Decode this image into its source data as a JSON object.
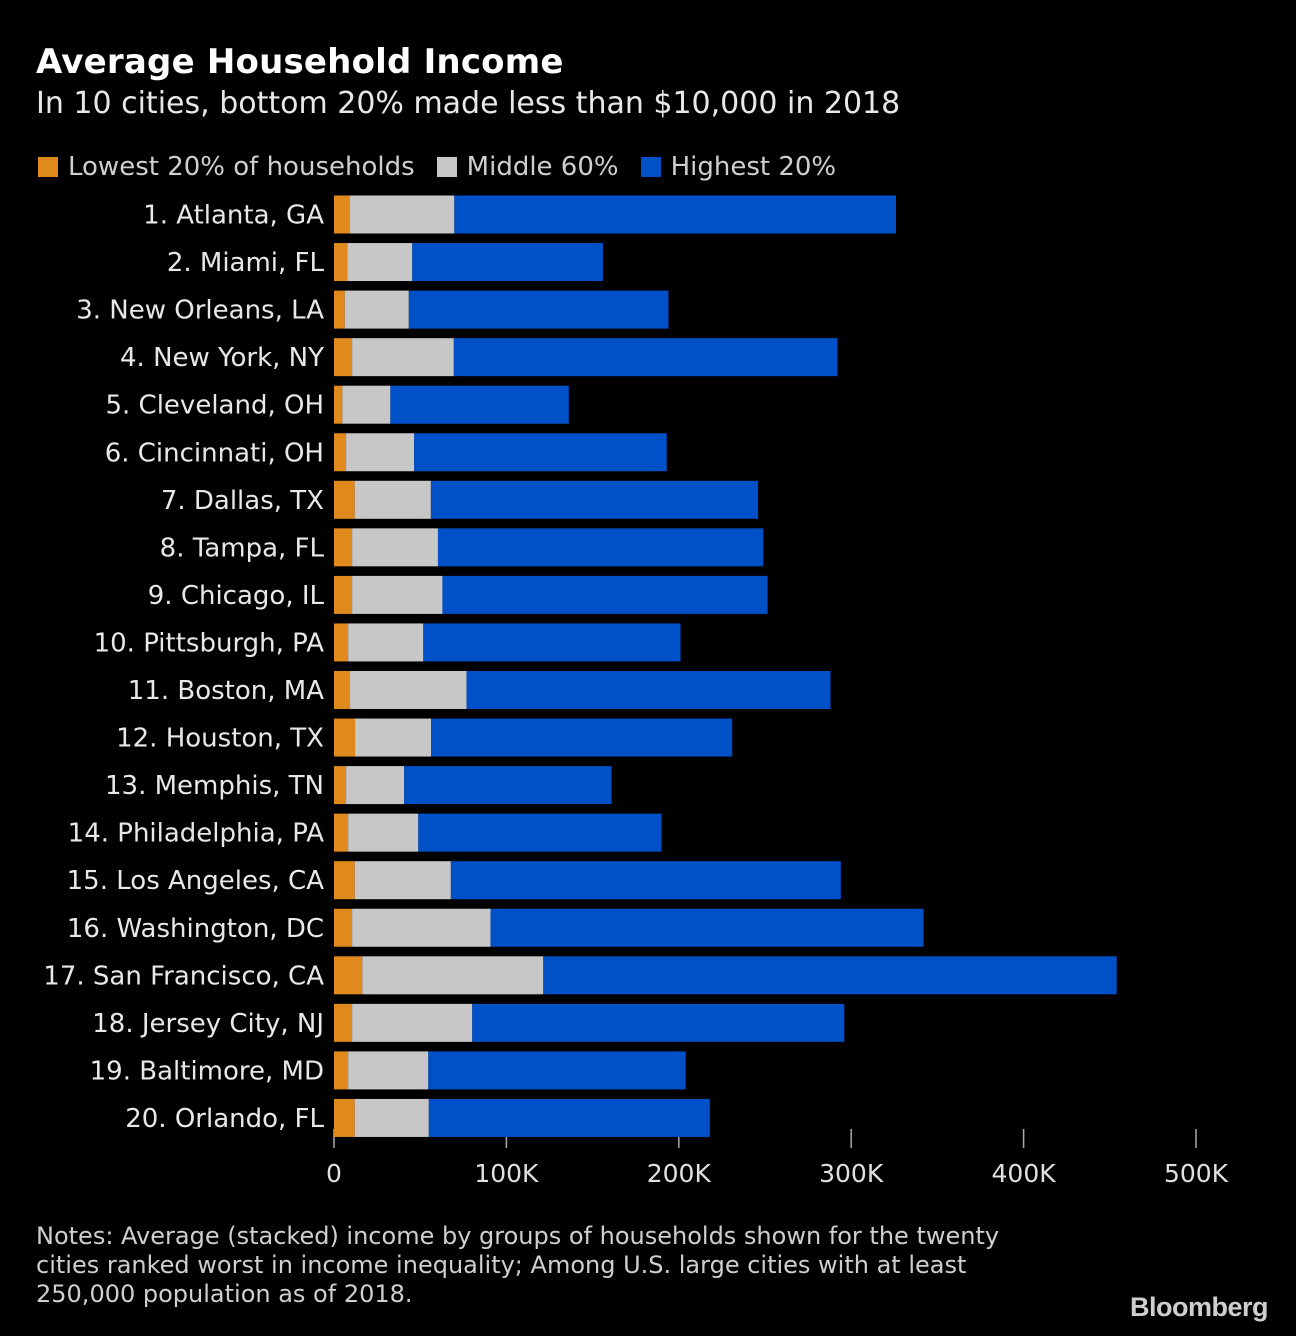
{
  "title": "Average Household Income",
  "subtitle": "In 10 cities, bottom 20% made less than $10,000 in 2018",
  "legend": [
    {
      "label": "Lowest 20% of households",
      "color": "#e08a1e"
    },
    {
      "label": "Middle 60%",
      "color": "#c7c7c7"
    },
    {
      "label": "Highest 20%",
      "color": "#0050c8"
    }
  ],
  "chart_data": {
    "type": "bar",
    "orientation": "horizontal",
    "stacked": true,
    "categories": [
      "1. Atlanta, GA",
      "2. Miami, FL",
      "3. New Orleans, LA",
      "4. New York, NY",
      "5. Cleveland, OH",
      "6. Cincinnati, OH",
      "7. Dallas, TX",
      "8. Tampa, FL",
      "9. Chicago, IL",
      "10. Pittsburgh, PA",
      "11. Boston, MA",
      "12. Houston, TX",
      "13. Memphis, TN",
      "14. Philadelphia, PA",
      "15. Los Angeles, CA",
      "16. Washington, DC",
      "17. San Francisco, CA",
      "18. Jersey City, NJ",
      "19. Baltimore, MD",
      "20. Orlando, FL"
    ],
    "series": [
      {
        "name": "Lowest 20% of households",
        "color": "#e08a1e",
        "values": [
          9300,
          7800,
          6200,
          10500,
          4800,
          7000,
          12000,
          10500,
          10500,
          8200,
          9300,
          12200,
          7000,
          8200,
          12000,
          10500,
          16400,
          10500,
          8200,
          12000
        ]
      },
      {
        "name": "Middle 60%",
        "color": "#c7c7c7",
        "values": [
          60500,
          37600,
          37200,
          59000,
          27900,
          39500,
          44200,
          49800,
          52400,
          43600,
          67600,
          44100,
          33700,
          40700,
          55800,
          80300,
          105000,
          69700,
          46500,
          43000
        ]
      },
      {
        "name": "Highest 20%",
        "color": "#0050c8",
        "values": [
          256200,
          110600,
          150600,
          222500,
          103500,
          146500,
          189800,
          188700,
          188600,
          149200,
          211100,
          174700,
          120300,
          141100,
          226200,
          251200,
          332600,
          215800,
          149300,
          163000
        ]
      }
    ],
    "xlim": [
      0,
      500000
    ],
    "xticks": [
      0,
      100000,
      200000,
      300000,
      400000,
      500000
    ],
    "xtick_labels": [
      "0",
      "100K",
      "200K",
      "300K",
      "400K",
      "500K"
    ]
  },
  "notes": "Notes: Average (stacked) income by groups of households shown for the twenty cities ranked worst in income inequality; Among U.S. large cities with at least 250,000 population as of 2018.",
  "brand": "Bloomberg"
}
